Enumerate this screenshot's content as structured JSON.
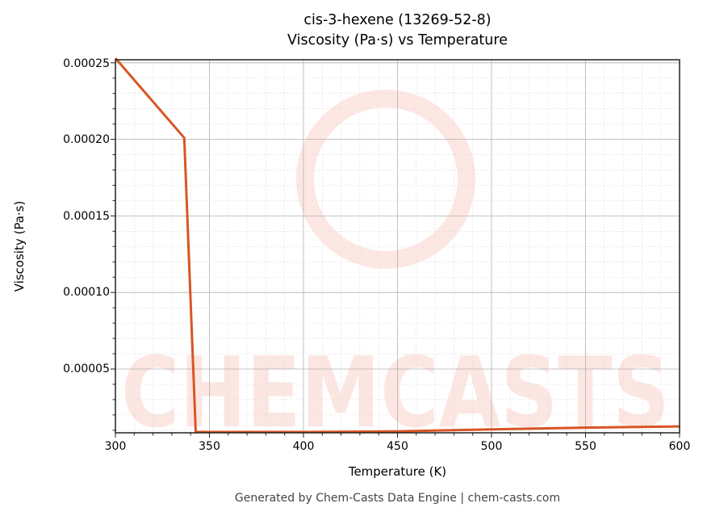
{
  "chart": {
    "title_line1": "cis-3-hexene (13269-52-8)",
    "title_line2": "Viscosity (Pa·s) vs Temperature",
    "xlabel": "Temperature (K)",
    "ylabel": "Viscosity (Pa·s)",
    "footer": "Generated by Chem-Casts Data Engine | chem-casts.com",
    "watermark": "CHEMCASTS",
    "line_color": "#d95525",
    "xticks": [
      "300",
      "350",
      "400",
      "450",
      "500",
      "550",
      "600"
    ],
    "yticks": [
      "0.00005",
      "0.00010",
      "0.00015",
      "0.00020",
      "0.00025"
    ]
  },
  "chart_data": {
    "type": "line",
    "title": "cis-3-hexene (13269-52-8) Viscosity (Pa·s) vs Temperature",
    "xlabel": "Temperature (K)",
    "ylabel": "Viscosity (Pa·s)",
    "xlim": [
      300,
      600
    ],
    "ylim": [
      6.7e-06,
      0.000253
    ],
    "grid": true,
    "legend": null,
    "series": [
      {
        "name": "Viscosity",
        "x": [
          300,
          336.6,
          342.7,
          400,
          450,
          500,
          550,
          600
        ],
        "y": [
          0.000253,
          0.000201,
          6.8e-06,
          8e-06,
          9.3e-06,
          1.06e-05,
          1.17e-05,
          1.25e-05
        ]
      }
    ]
  }
}
